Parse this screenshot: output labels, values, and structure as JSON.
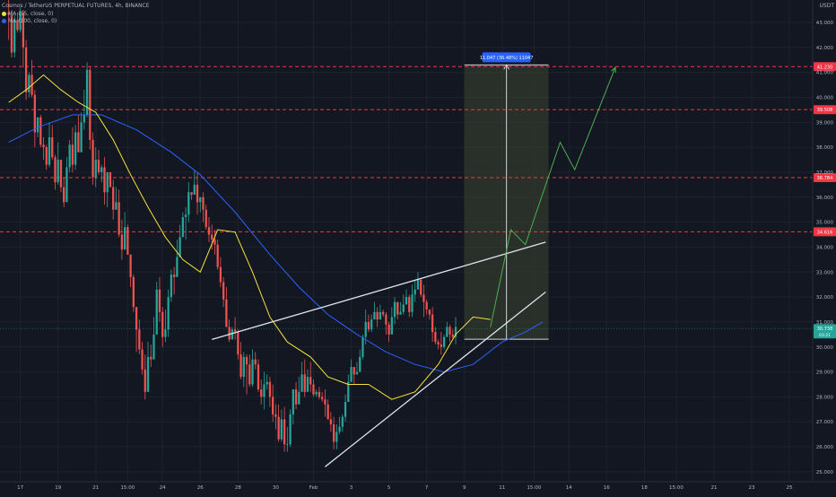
{
  "header": {
    "title": "Cosmos / TetherUS PERPETUAL FUTURES, 4h, BINANCE",
    "ma1": "MA (55, close, 0)",
    "ma2": "MA (100, close, 0)",
    "quote": "USDT"
  },
  "colors": {
    "background": "#131722",
    "up": "#26a69a",
    "down": "#ef5350",
    "ma_fast": "#f5e33b",
    "ma_slow": "#2962ff",
    "level": "#f23645",
    "projection": "#4caf50",
    "trendline": "#e0e3eb",
    "range_box": "#3a4530",
    "range_label_bg": "#2962ff",
    "price_tag": "#26a69a"
  },
  "chart_data": {
    "type": "candlestick",
    "symbol": "Cosmos / TetherUS PERPETUAL FUTURES",
    "interval": "4h",
    "exchange": "BINANCE",
    "y_unit": "USDT",
    "ylim": [
      24.6,
      43.9
    ],
    "y_ticks": [
      "25.000",
      "26.000",
      "27.000",
      "28.000",
      "29.000",
      "30.000",
      "31.000",
      "32.000",
      "33.000",
      "34.000",
      "35.000",
      "36.000",
      "37.000",
      "38.000",
      "39.000",
      "40.000",
      "41.000",
      "42.000",
      "43.000"
    ],
    "x_ticks": [
      "17",
      "19",
      "21",
      "15:00",
      "24",
      "26",
      "28",
      "30",
      "Feb",
      "3",
      "5",
      "7",
      "9",
      "11",
      "15:00",
      "14",
      "16",
      "18",
      "15:00",
      "21",
      "23",
      "25"
    ],
    "x_tick_index": [
      4,
      17,
      30,
      41,
      53,
      66,
      79,
      92,
      105,
      118,
      131,
      144,
      157,
      170,
      181,
      193,
      206,
      219,
      230,
      243,
      256,
      269
    ],
    "x_range": [
      -3,
      277
    ],
    "candles": [
      [
        43.4,
        43.3,
        43.9,
        42.3
      ],
      [
        43.3,
        41.8,
        43.5,
        41.6
      ],
      [
        41.8,
        43.1,
        43.3,
        41.6
      ],
      [
        43.1,
        42.7,
        43.4,
        42.6
      ],
      [
        42.7,
        43.4,
        43.6,
        42.6
      ],
      [
        43.4,
        42.0,
        43.5,
        41.2
      ],
      [
        42.0,
        40.2,
        42.3,
        39.9
      ],
      [
        40.2,
        40.9,
        41.0,
        40.0
      ],
      [
        40.9,
        40.1,
        41.5,
        40.0
      ],
      [
        40.1,
        38.6,
        40.3,
        38.0
      ],
      [
        38.6,
        39.2,
        39.2,
        38.4
      ],
      [
        39.2,
        38.1,
        39.3,
        38.0
      ],
      [
        38.1,
        38.0,
        38.4,
        37.5
      ],
      [
        38.0,
        37.3,
        38.1,
        37.1
      ],
      [
        37.3,
        38.4,
        39.0,
        37.2
      ],
      [
        38.4,
        37.6,
        38.9,
        37.5
      ],
      [
        37.6,
        36.6,
        37.7,
        36.3
      ],
      [
        36.6,
        37.5,
        38.2,
        36.5
      ],
      [
        37.5,
        36.4,
        37.5,
        36.2
      ],
      [
        36.4,
        35.8,
        36.8,
        35.6
      ],
      [
        35.8,
        37.2,
        37.6,
        35.9
      ],
      [
        37.2,
        38.1,
        38.3,
        37.0
      ],
      [
        38.1,
        37.3,
        38.8,
        37.0
      ],
      [
        37.3,
        38.6,
        38.9,
        37.1
      ],
      [
        38.6,
        37.8,
        39.3,
        37.8
      ],
      [
        37.8,
        39.0,
        39.4,
        37.9
      ],
      [
        39.0,
        39.3,
        40.3,
        38.7
      ],
      [
        39.3,
        41.1,
        41.4,
        39.2
      ],
      [
        41.1,
        38.3,
        41.2,
        37.9
      ],
      [
        38.3,
        36.8,
        38.6,
        36.5
      ],
      [
        36.8,
        37.5,
        38.0,
        36.4
      ],
      [
        37.5,
        37.0,
        37.9,
        36.9
      ],
      [
        37.0,
        37.2,
        37.3,
        36.6
      ],
      [
        37.2,
        36.2,
        37.6,
        35.7
      ],
      [
        36.2,
        37.0,
        37.0,
        35.6
      ],
      [
        37.0,
        36.4,
        37.0,
        36.4
      ],
      [
        36.4,
        35.5,
        36.7,
        35.1
      ],
      [
        35.5,
        35.8,
        36.4,
        35.5
      ],
      [
        35.8,
        34.5,
        36.3,
        34.4
      ],
      [
        34.5,
        33.9,
        35.1,
        33.5
      ],
      [
        33.9,
        34.8,
        35.4,
        34.4
      ],
      [
        34.8,
        33.7,
        34.9,
        33.7
      ],
      [
        33.7,
        32.8,
        33.7,
        32.4
      ],
      [
        32.8,
        31.6,
        32.9,
        31.4
      ],
      [
        31.6,
        30.7,
        31.6,
        29.8
      ],
      [
        30.7,
        29.9,
        31.1,
        29.7
      ],
      [
        29.9,
        29.1,
        30.2,
        28.9
      ],
      [
        29.1,
        28.2,
        29.7,
        27.9
      ],
      [
        28.2,
        29.6,
        30.2,
        28.3
      ],
      [
        29.6,
        29.5,
        30.1,
        29.2
      ],
      [
        29.5,
        30.5,
        31.2,
        30.0
      ],
      [
        30.5,
        32.3,
        32.6,
        30.5
      ],
      [
        32.3,
        31.4,
        32.8,
        31.0
      ],
      [
        31.4,
        30.4,
        31.6,
        30.0
      ],
      [
        30.4,
        30.7,
        31.5,
        30.2
      ],
      [
        30.7,
        32.0,
        32.3,
        30.4
      ],
      [
        32.0,
        32.9,
        33.1,
        31.8
      ],
      [
        32.9,
        32.8,
        33.2,
        32.1
      ],
      [
        32.8,
        33.6,
        34.3,
        32.9
      ],
      [
        33.6,
        34.4,
        34.9,
        34.2
      ],
      [
        34.4,
        35.2,
        35.4,
        34.8
      ],
      [
        35.2,
        35.3,
        35.6,
        34.3
      ],
      [
        35.3,
        36.2,
        36.6,
        35.0
      ],
      [
        36.2,
        36.1,
        36.2,
        35.9
      ],
      [
        36.1,
        36.5,
        37.1,
        36.2
      ],
      [
        36.5,
        35.8,
        37.0,
        35.3
      ],
      [
        35.8,
        36.0,
        36.0,
        35.4
      ],
      [
        36.0,
        35.5,
        36.2,
        35.0
      ],
      [
        35.5,
        34.8,
        35.7,
        34.7
      ],
      [
        34.8,
        34.5,
        35.2,
        34.2
      ],
      [
        34.5,
        34.3,
        34.9,
        33.9
      ],
      [
        34.3,
        34.1,
        34.7,
        33.7
      ],
      [
        34.1,
        33.2,
        34.3,
        33.1
      ],
      [
        33.2,
        32.6,
        33.6,
        32.4
      ],
      [
        32.6,
        31.9,
        32.8,
        31.6
      ],
      [
        31.9,
        30.8,
        32.4,
        30.8
      ],
      [
        30.8,
        30.3,
        31.1,
        30.2
      ],
      [
        30.3,
        30.7,
        30.8,
        30.3
      ],
      [
        30.7,
        30.6,
        31.2,
        30.3
      ],
      [
        30.6,
        29.7,
        30.7,
        29.5
      ],
      [
        29.7,
        28.8,
        30.2,
        28.7
      ],
      [
        28.8,
        29.6,
        29.8,
        28.4
      ],
      [
        29.6,
        29.3,
        29.7,
        28.1
      ],
      [
        29.3,
        28.5,
        29.7,
        28.4
      ],
      [
        28.5,
        29.5,
        29.9,
        28.4
      ],
      [
        29.5,
        29.3,
        29.8,
        29.1
      ],
      [
        29.3,
        28.3,
        29.5,
        28.2
      ],
      [
        28.3,
        28.0,
        28.7,
        27.7
      ],
      [
        28.0,
        28.5,
        29.0,
        27.5
      ],
      [
        28.5,
        28.6,
        28.9,
        28.3
      ],
      [
        28.6,
        28.0,
        28.8,
        27.6
      ],
      [
        28.0,
        27.3,
        28.5,
        27.0
      ],
      [
        27.3,
        27.2,
        27.7,
        26.7
      ],
      [
        27.2,
        26.3,
        27.7,
        26.2
      ],
      [
        26.3,
        27.1,
        27.5,
        26.2
      ],
      [
        27.1,
        26.1,
        27.6,
        25.8
      ],
      [
        26.1,
        26.1,
        26.8,
        25.8
      ],
      [
        26.1,
        27.3,
        27.5,
        26.0
      ],
      [
        27.3,
        28.3,
        28.3,
        26.9
      ],
      [
        28.3,
        27.7,
        28.6,
        27.5
      ],
      [
        27.7,
        28.2,
        28.8,
        27.9
      ],
      [
        28.2,
        28.9,
        29.4,
        28.3
      ],
      [
        28.9,
        28.2,
        29.5,
        28.0
      ],
      [
        28.2,
        28.8,
        29.1,
        28.3
      ],
      [
        28.8,
        28.5,
        29.4,
        28.2
      ],
      [
        28.5,
        28.1,
        28.7,
        28.0
      ],
      [
        28.1,
        28.2,
        28.3,
        28.0
      ],
      [
        28.2,
        28.0,
        28.4,
        27.9
      ],
      [
        28.0,
        27.9,
        28.2,
        27.8
      ],
      [
        27.9,
        27.7,
        28.3,
        27.2
      ],
      [
        27.7,
        27.1,
        27.9,
        27.1
      ],
      [
        27.1,
        26.9,
        27.4,
        26.6
      ],
      [
        26.9,
        26.2,
        27.2,
        25.9
      ],
      [
        26.2,
        26.6,
        26.9,
        25.9
      ],
      [
        26.6,
        26.8,
        27.2,
        26.5
      ],
      [
        26.8,
        27.2,
        27.3,
        26.6
      ],
      [
        27.2,
        27.8,
        28.1,
        27.0
      ],
      [
        27.8,
        28.6,
        28.9,
        27.8
      ],
      [
        28.6,
        29.2,
        29.5,
        28.6
      ],
      [
        29.2,
        28.9,
        29.2,
        28.5
      ],
      [
        28.9,
        29.0,
        29.4,
        28.9
      ],
      [
        29.0,
        29.6,
        29.9,
        29.3
      ],
      [
        29.6,
        30.4,
        30.5,
        29.5
      ],
      [
        30.4,
        31.0,
        31.5,
        30.1
      ],
      [
        31.0,
        30.7,
        31.3,
        30.6
      ],
      [
        30.7,
        31.1,
        31.3,
        30.6
      ],
      [
        31.1,
        31.4,
        31.8,
        31.3
      ],
      [
        31.4,
        31.1,
        31.6,
        30.8
      ],
      [
        31.1,
        31.4,
        31.7,
        31.1
      ],
      [
        31.4,
        31.3,
        31.5,
        31.2
      ],
      [
        31.3,
        30.9,
        31.4,
        30.5
      ],
      [
        30.9,
        30.5,
        31.0,
        30.2
      ],
      [
        30.5,
        31.2,
        31.6,
        30.6
      ],
      [
        31.2,
        31.8,
        32.0,
        30.9
      ],
      [
        31.8,
        31.3,
        31.8,
        31.1
      ],
      [
        31.3,
        31.4,
        31.8,
        31.3
      ],
      [
        31.4,
        31.7,
        32.1,
        31.3
      ],
      [
        31.7,
        32.0,
        32.3,
        31.7
      ],
      [
        32.0,
        31.4,
        32.1,
        31.2
      ],
      [
        31.4,
        32.1,
        32.5,
        31.2
      ],
      [
        32.1,
        32.3,
        32.7,
        31.8
      ],
      [
        32.3,
        32.7,
        33.0,
        32.4
      ],
      [
        32.7,
        32.1,
        32.7,
        32.0
      ],
      [
        32.1,
        31.8,
        32.5,
        31.2
      ],
      [
        31.8,
        31.5,
        31.9,
        31.3
      ],
      [
        31.5,
        31.3,
        31.5,
        31.1
      ],
      [
        31.3,
        30.6,
        31.6,
        30.2
      ],
      [
        30.6,
        30.2,
        30.8,
        30.1
      ],
      [
        30.2,
        30.1,
        30.3,
        29.9
      ],
      [
        30.1,
        30.0,
        30.6,
        29.7
      ],
      [
        30.0,
        30.4,
        30.5,
        29.9
      ],
      [
        30.4,
        30.8,
        31.0,
        30.5
      ],
      [
        30.8,
        30.5,
        30.9,
        30.2
      ],
      [
        30.5,
        30.4,
        30.7,
        30.3
      ],
      [
        30.4,
        30.8,
        31.2,
        30.1
      ]
    ],
    "ma_fast_points": [
      [
        0,
        39.8
      ],
      [
        6,
        40.3
      ],
      [
        12,
        40.9
      ],
      [
        18,
        40.3
      ],
      [
        24,
        39.8
      ],
      [
        30,
        39.4
      ],
      [
        36,
        38.3
      ],
      [
        42,
        36.9
      ],
      [
        48,
        35.6
      ],
      [
        54,
        34.4
      ],
      [
        60,
        33.5
      ],
      [
        66,
        33.0
      ],
      [
        72,
        34.7
      ],
      [
        78,
        34.6
      ],
      [
        84,
        33.0
      ],
      [
        90,
        31.2
      ],
      [
        96,
        30.2
      ],
      [
        104,
        29.6
      ],
      [
        110,
        28.8
      ],
      [
        117,
        28.5
      ],
      [
        124,
        28.5
      ],
      [
        132,
        27.9
      ],
      [
        140,
        28.2
      ],
      [
        148,
        29.3
      ],
      [
        154,
        30.5
      ],
      [
        160,
        31.2
      ],
      [
        166,
        31.1
      ]
    ],
    "ma_slow_points": [
      [
        0,
        38.2
      ],
      [
        10,
        38.8
      ],
      [
        22,
        39.3
      ],
      [
        32,
        39.3
      ],
      [
        44,
        38.7
      ],
      [
        56,
        37.8
      ],
      [
        66,
        36.9
      ],
      [
        78,
        35.4
      ],
      [
        90,
        33.7
      ],
      [
        100,
        32.4
      ],
      [
        110,
        31.3
      ],
      [
        120,
        30.5
      ],
      [
        130,
        29.8
      ],
      [
        140,
        29.3
      ],
      [
        150,
        29.0
      ],
      [
        160,
        29.3
      ],
      [
        170,
        30.2
      ],
      [
        178,
        30.6
      ],
      [
        184,
        31.0
      ]
    ],
    "levels": [
      {
        "value": 41.23,
        "label": "41.230"
      },
      {
        "value": 39.508,
        "label": "39.508"
      },
      {
        "value": 36.784,
        "label": "36.784"
      },
      {
        "value": 34.616,
        "label": "34.616"
      }
    ],
    "current_price": {
      "value": 30.738,
      "label": "30.738",
      "timer": "03:21"
    },
    "range_measure": {
      "label": "11.047 (36.48%) 11047",
      "x_from": 157,
      "x_to": 186,
      "from": 30.31,
      "to": 41.3
    },
    "trendlines": [
      {
        "x1": 70,
        "y1": 30.3,
        "x2": 185,
        "y2": 34.2
      },
      {
        "x1": 109,
        "y1": 25.2,
        "x2": 185,
        "y2": 32.2
      }
    ],
    "projection_path": [
      [
        166,
        30.8
      ],
      [
        173,
        34.7
      ],
      [
        178,
        34.1
      ],
      [
        190,
        38.2
      ],
      [
        195,
        37.1
      ],
      [
        209,
        41.2
      ]
    ]
  }
}
